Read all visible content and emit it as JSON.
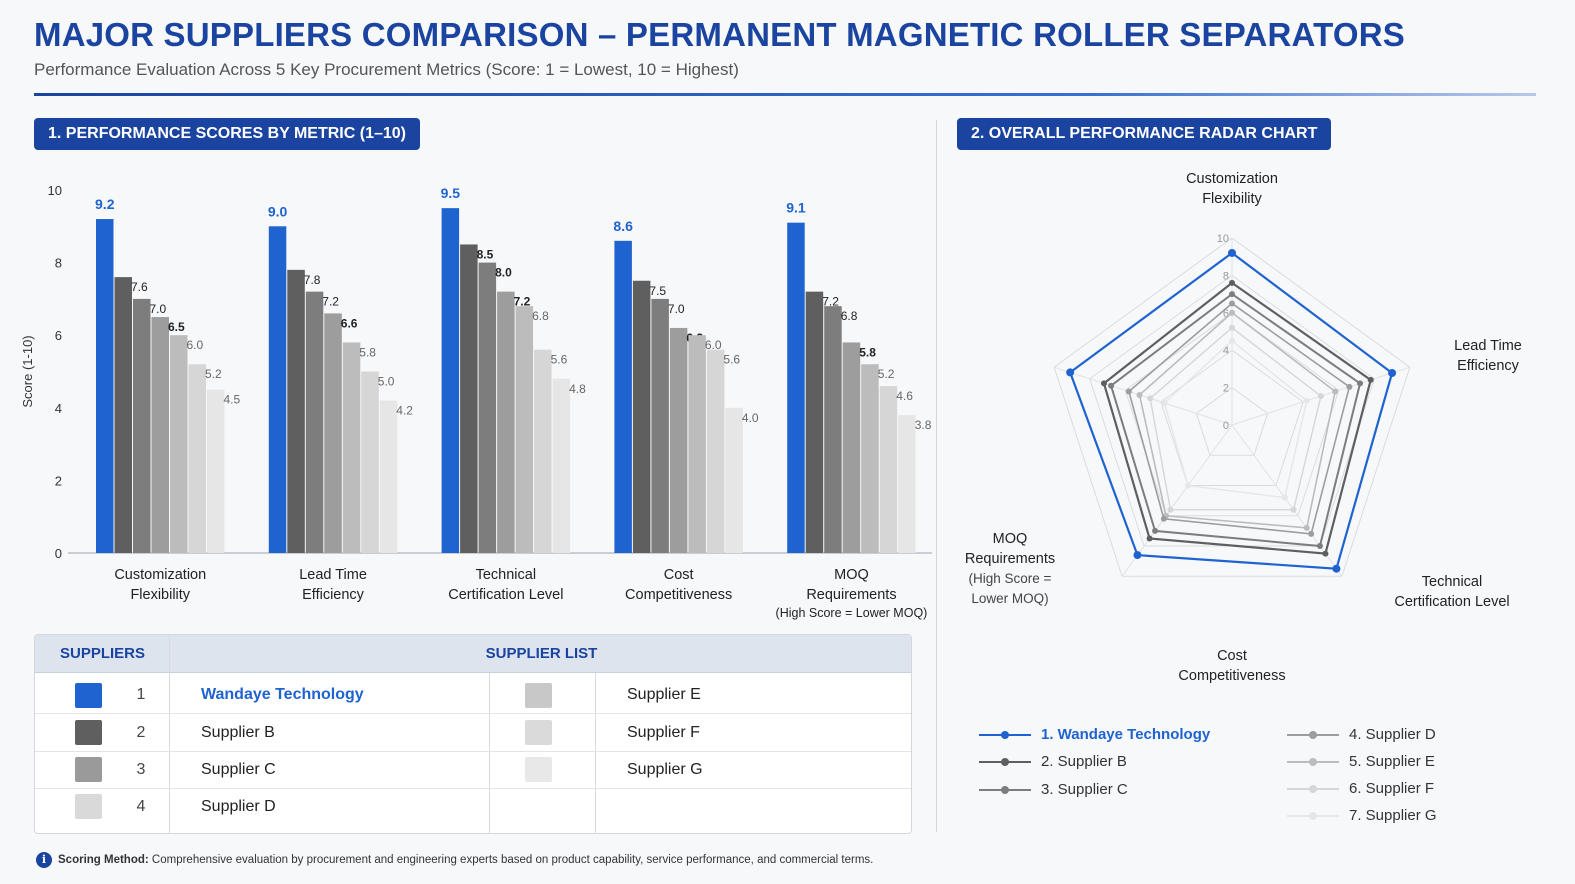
{
  "header": {
    "title": "MAJOR SUPPLIERS COMPARISON – PERMANENT MAGNETIC ROLLER SEPARATORS",
    "subtitle": "Performance Evaluation Across 5 Key Procurement Metrics (Score: 1 = Lowest, 10 = Highest)"
  },
  "sections": {
    "bar_title": "1. PERFORMANCE SCORES BY METRIC (1–10)",
    "radar_title": "2. OVERALL PERFORMANCE RADAR CHART"
  },
  "colors": {
    "brand": "#1a44a0",
    "suppliers": [
      "#1f63d0",
      "#5f5f5f",
      "#7d7d7d",
      "#9d9d9d",
      "#bcbcbc",
      "#d6d6d6",
      "#e6e6e6"
    ]
  },
  "chart_data": [
    {
      "type": "bar",
      "ylabel": "Score (1-10)",
      "ylim": [
        0,
        10
      ],
      "yticks": [
        "0",
        "2",
        "4",
        "6",
        "8",
        "10"
      ],
      "categories": [
        [
          "Customization",
          "Flexibility"
        ],
        [
          "Lead Time",
          "Efficiency"
        ],
        [
          "Technical",
          "Certification Level"
        ],
        [
          "Cost",
          "Competitiveness"
        ],
        [
          "MOQ",
          "Requirements",
          "(High Score = Lower MOQ)"
        ]
      ],
      "series": [
        {
          "name": "Wandaye Technology",
          "values": [
            9.2,
            9.0,
            9.5,
            8.6,
            9.1
          ]
        },
        {
          "name": "Supplier B",
          "values": [
            7.6,
            7.8,
            8.5,
            7.5,
            7.2
          ]
        },
        {
          "name": "Supplier C",
          "values": [
            7.0,
            7.2,
            8.0,
            7.0,
            6.8
          ]
        },
        {
          "name": "Supplier D",
          "values": [
            6.5,
            6.6,
            7.2,
            6.2,
            5.8
          ]
        },
        {
          "name": "Supplier E",
          "values": [
            6.0,
            5.8,
            6.8,
            6.0,
            5.2
          ]
        },
        {
          "name": "Supplier F",
          "values": [
            5.2,
            5.0,
            5.6,
            5.6,
            4.6
          ]
        },
        {
          "name": "Supplier G",
          "values": [
            4.5,
            4.2,
            4.8,
            4.0,
            3.8
          ]
        }
      ],
      "data_labels": [
        [
          "9.2",
          "7.6",
          "7.0",
          "6.5",
          "6.0",
          "5.2",
          "4.5"
        ],
        [
          "9.0",
          "7.8",
          "7.2",
          "6.6",
          "5.8",
          "5.0",
          "4.2"
        ],
        [
          "9.5",
          "8.5",
          "8.0",
          "7.2",
          "6.8",
          "5.6",
          "4.8"
        ],
        [
          "8.6",
          "7.5",
          "7.0",
          "6.2",
          "6.0",
          "5.6",
          "4.0"
        ],
        [
          "9.1",
          "7.2",
          "6.8",
          "5.8",
          "5.2",
          "4.6",
          "3.8"
        ]
      ],
      "grid": false
    },
    {
      "type": "radar",
      "axes": [
        [
          "Customization",
          "Flexibility"
        ],
        [
          "Lead Time",
          "Efficiency"
        ],
        [
          "Technical",
          "Certification Level"
        ],
        [
          "Cost",
          "Competitiveness"
        ],
        [
          "MOQ",
          "Requirements",
          "(High Score =",
          "Lower MOQ)"
        ]
      ],
      "rlim": [
        0,
        10
      ],
      "rticks": [
        "0",
        "2",
        "4",
        "6",
        "8",
        "10"
      ],
      "series": [
        {
          "name": "1. Wandaye Technology",
          "values": [
            9.2,
            9.0,
            9.5,
            8.6,
            9.1
          ]
        },
        {
          "name": "2. Supplier B",
          "values": [
            7.6,
            7.8,
            8.5,
            7.5,
            7.2
          ]
        },
        {
          "name": "3. Supplier C",
          "values": [
            7.0,
            7.2,
            8.0,
            7.0,
            6.8
          ]
        },
        {
          "name": "4. Supplier D",
          "values": [
            6.5,
            6.6,
            7.2,
            6.2,
            5.8
          ]
        },
        {
          "name": "5. Supplier E",
          "values": [
            6.0,
            5.8,
            6.8,
            6.0,
            5.2
          ]
        },
        {
          "name": "6. Supplier F",
          "values": [
            5.2,
            5.0,
            5.6,
            5.6,
            4.6
          ]
        },
        {
          "name": "7. Supplier G",
          "values": [
            4.5,
            4.2,
            4.8,
            4.0,
            3.8
          ]
        }
      ],
      "legend": "bottom"
    }
  ],
  "table": {
    "header_left": "SUPPLIERS",
    "header_right": "SUPPLIER LIST",
    "rows": [
      {
        "num": "1",
        "name": "Wandaye Technology"
      },
      {
        "num": "2",
        "name": "Supplier B"
      },
      {
        "num": "3",
        "name": "Supplier C"
      },
      {
        "num": "4",
        "name": "Supplier D"
      }
    ],
    "right_rows": [
      {
        "name": "Supplier E"
      },
      {
        "name": "Supplier F"
      },
      {
        "name": "Supplier G"
      }
    ]
  },
  "footnote": {
    "icon": "info-icon",
    "label": "Scoring Method:",
    "text": " Comprehensive evaluation by procurement and engineering experts based on product capability, service performance, and commercial terms."
  }
}
